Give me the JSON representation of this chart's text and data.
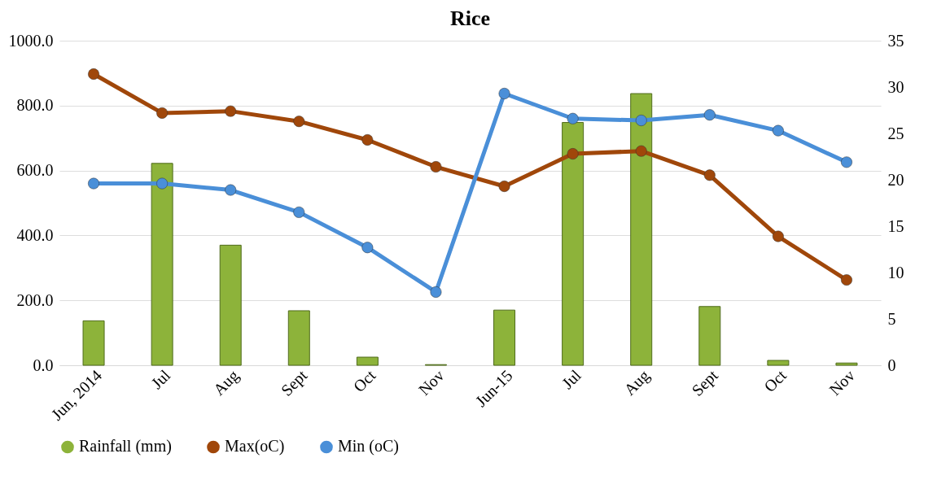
{
  "chart_data": {
    "type": "bar",
    "title": "Rice",
    "categories": [
      "Jun, 2014",
      "Jul",
      "Aug",
      "Sept",
      "Oct",
      "Nov",
      "Jun-15",
      "Jul",
      "Aug",
      "Sept",
      "Oct",
      "Nov"
    ],
    "series": [
      {
        "name": "Rainfall (mm)",
        "color": "#8db33a",
        "values": [
          137,
          622,
          370,
          168,
          25,
          2,
          170,
          748,
          837,
          181,
          15,
          7
        ]
      },
      {
        "name": "Max(oC)",
        "type": "line",
        "axis": "y2",
        "color": "#a0470a",
        "values": [
          31.4,
          27.2,
          27.4,
          26.3,
          24.3,
          21.4,
          19.3,
          22.8,
          23.1,
          20.5,
          13.9,
          9.2
        ]
      },
      {
        "name": "Min (oC)",
        "type": "line",
        "axis": "y2",
        "color": "#4a8fd8",
        "values": [
          19.6,
          19.6,
          18.9,
          16.5,
          12.7,
          7.9,
          29.3,
          26.6,
          26.4,
          27.0,
          25.3,
          21.9
        ]
      }
    ],
    "ylim": [
      0,
      1000
    ],
    "yticks": [
      {
        "value": 0,
        "label": "0.0"
      },
      {
        "value": 200,
        "label": "200.0"
      },
      {
        "value": 400,
        "label": "400.0"
      },
      {
        "value": 600,
        "label": "600.0"
      },
      {
        "value": 800,
        "label": "800.0"
      },
      {
        "value": 1000,
        "label": "1000.0"
      }
    ],
    "y2lim": [
      0,
      35
    ],
    "y2ticks": [
      0,
      5,
      10,
      15,
      20,
      25,
      30,
      35
    ],
    "grid": "y",
    "legend": "bottom",
    "marker": "circle",
    "line_style": "solid"
  }
}
